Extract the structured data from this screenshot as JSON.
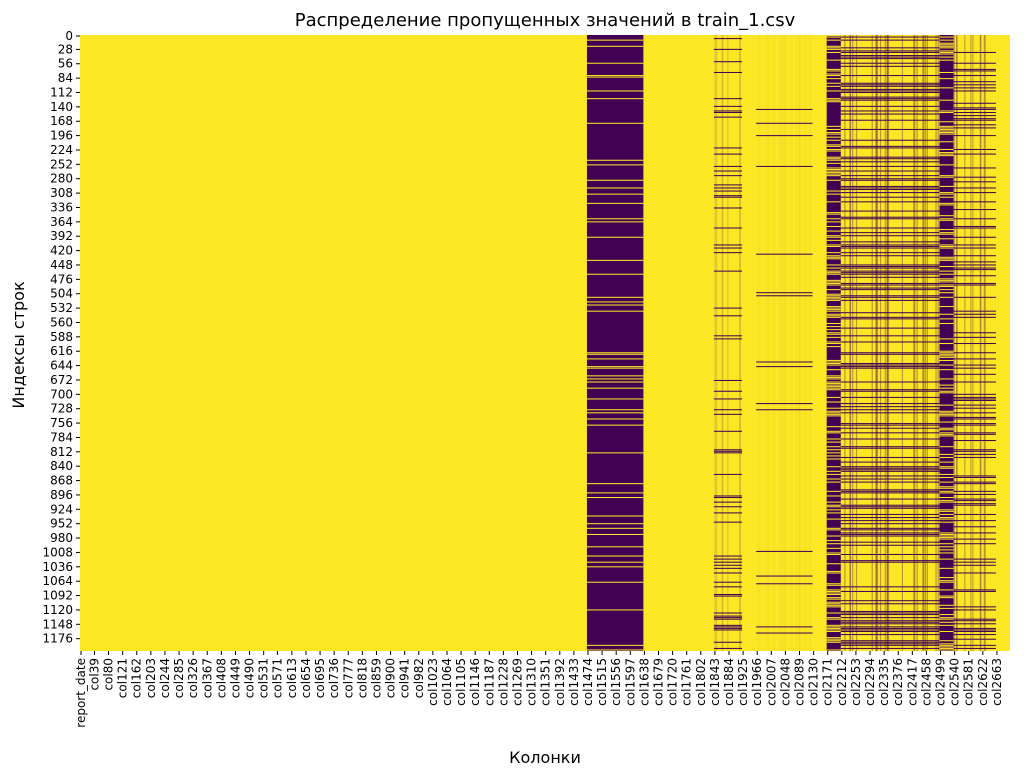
{
  "chart_data": {
    "type": "heatmap",
    "title": "Распределение пропущенных значений в train_1.csv",
    "xlabel": "Колонки",
    "ylabel": "Индексы строк",
    "colormap": "viridis",
    "colors": {
      "present": "#fde725",
      "missing": "#440154"
    },
    "grid": false,
    "legend": "none",
    "n_rows": 1200,
    "n_cols": 2704,
    "y_ticks": [
      0,
      28,
      56,
      84,
      112,
      140,
      168,
      196,
      224,
      252,
      280,
      308,
      336,
      364,
      392,
      420,
      448,
      476,
      504,
      532,
      560,
      588,
      616,
      644,
      672,
      700,
      728,
      756,
      784,
      812,
      840,
      868,
      896,
      924,
      952,
      980,
      1008,
      1036,
      1064,
      1092,
      1120,
      1148,
      1176
    ],
    "x_tick_labels": [
      "report_date",
      "col39",
      "col80",
      "col121",
      "col162",
      "col203",
      "col244",
      "col285",
      "col326",
      "col367",
      "col408",
      "col449",
      "col490",
      "col531",
      "col571",
      "col613",
      "col654",
      "col695",
      "col736",
      "col777",
      "col818",
      "col859",
      "col900",
      "col941",
      "col982",
      "col1023",
      "col1064",
      "col1105",
      "col1146",
      "col1187",
      "col1228",
      "col1269",
      "col1310",
      "col1351",
      "col1392",
      "col1433",
      "col1474",
      "col1515",
      "col1556",
      "col1597",
      "col1638",
      "col1679",
      "col1720",
      "col1761",
      "col1802",
      "col1843",
      "col1884",
      "col1925",
      "col1966",
      "col2007",
      "col2048",
      "col2089",
      "col2130",
      "col2171",
      "col2212",
      "col2253",
      "col2294",
      "col2335",
      "col2376",
      "col2417",
      "col2458",
      "col2499",
      "col2540",
      "col2581",
      "col2622",
      "col2663"
    ],
    "missing_column_blocks": [
      {
        "from": "col1474",
        "to": "col1638",
        "missing_share": 0.85
      },
      {
        "from": "col1843",
        "to": "col1925",
        "missing_share": 0.15
      },
      {
        "from": "col1966",
        "to": "col2130",
        "missing_share": 0.04
      },
      {
        "from": "col2171",
        "to": "col2212",
        "missing_share": 0.6
      },
      {
        "from": "col2212",
        "to": "col2499",
        "missing_share": 0.35
      },
      {
        "from": "col2499",
        "to": "col2540",
        "missing_share": 0.7
      },
      {
        "from": "col2540",
        "to": "col2663",
        "missing_share": 0.3
      }
    ]
  }
}
